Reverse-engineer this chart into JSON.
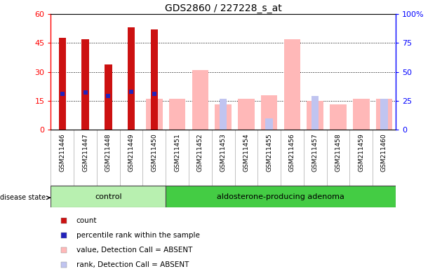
{
  "title": "GDS2860 / 227228_s_at",
  "samples": [
    "GSM211446",
    "GSM211447",
    "GSM211448",
    "GSM211449",
    "GSM211450",
    "GSM211451",
    "GSM211452",
    "GSM211453",
    "GSM211454",
    "GSM211455",
    "GSM211456",
    "GSM211457",
    "GSM211458",
    "GSM211459",
    "GSM211460"
  ],
  "group_labels": [
    "control",
    "aldosterone-producing adenoma"
  ],
  "group_sizes": [
    5,
    10
  ],
  "count_values": [
    47.5,
    47,
    34,
    53,
    52,
    0,
    0,
    0,
    0,
    0,
    0,
    0,
    0,
    0,
    0
  ],
  "percentile_rank_right": [
    31,
    32,
    29,
    33,
    31,
    0,
    0,
    0,
    0,
    0,
    0,
    0,
    0,
    0,
    0
  ],
  "absent_value_left": [
    0,
    0,
    0,
    0,
    16,
    16,
    31,
    13,
    16,
    18,
    47,
    15,
    13,
    16,
    16
  ],
  "absent_rank_right": [
    0,
    0,
    0,
    0,
    0,
    0,
    0,
    27,
    0,
    10,
    0,
    29,
    0,
    0,
    27
  ],
  "bar_color_count": "#cc1111",
  "bar_color_rank_marker": "#2222bb",
  "bar_color_absent_val": "#ffb8b8",
  "bar_color_absent_rank": "#c0c4f0",
  "left_ylim": [
    0,
    60
  ],
  "right_ylim": [
    0,
    100
  ],
  "left_yticks": [
    0,
    15,
    30,
    45,
    60
  ],
  "right_yticks": [
    0,
    25,
    50,
    75,
    100
  ],
  "right_yticklabels": [
    "0",
    "25",
    "50",
    "75",
    "100%"
  ],
  "disease_state_label": "disease state",
  "legend_items": [
    {
      "color": "#cc1111",
      "label": "count"
    },
    {
      "color": "#2222bb",
      "label": "percentile rank within the sample"
    },
    {
      "color": "#ffb8b8",
      "label": "value, Detection Call = ABSENT"
    },
    {
      "color": "#c0c4f0",
      "label": "rank, Detection Call = ABSENT"
    }
  ]
}
